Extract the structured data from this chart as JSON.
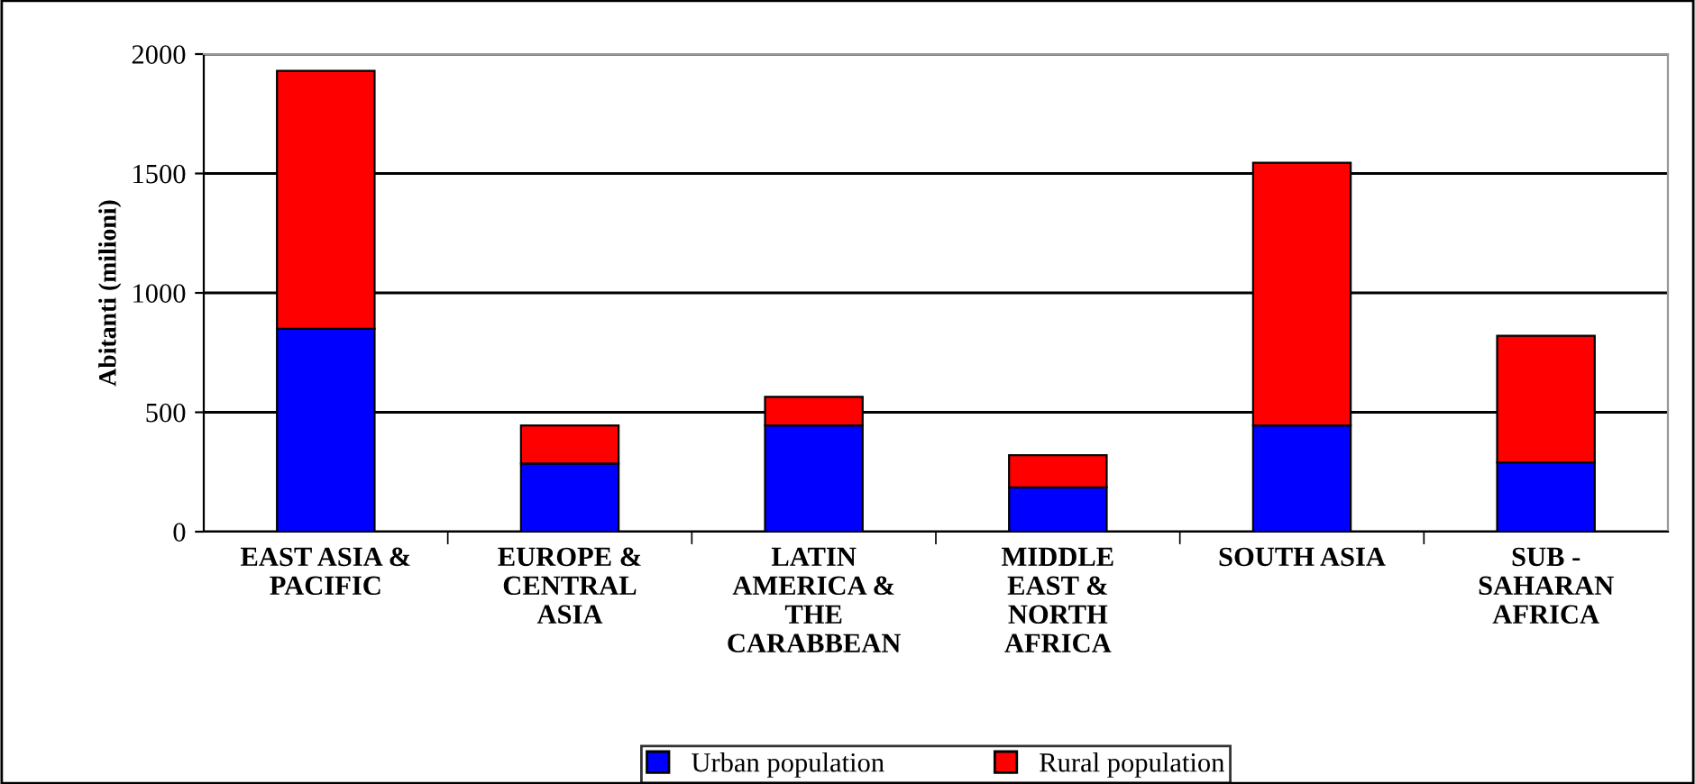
{
  "chart_data": {
    "type": "bar",
    "stacked": true,
    "ylabel": "Abitanti (milioni)",
    "categories": [
      "EAST ASIA &\nPACIFIC",
      "EUROPE &\nCENTRAL\nASIA",
      "LATIN\nAMERICA &\nTHE\nCARABBEAN",
      "MIDDLE\nEAST &\nNORTH\nAFRICA",
      "SOUTH ASIA",
      "SUB -\nSAHARAN\nAFRICA"
    ],
    "series": [
      {
        "name": "Urban population",
        "color": "#0000ff",
        "values": [
          850,
          285,
          445,
          185,
          445,
          290
        ]
      },
      {
        "name": "Rural population",
        "color": "#ff0000",
        "values": [
          1080,
          160,
          120,
          135,
          1100,
          530
        ]
      }
    ],
    "ylim": [
      0,
      2000
    ],
    "yticks": [
      0,
      500,
      1000,
      1500,
      2000
    ],
    "grid": "y",
    "legend": "bottom"
  }
}
